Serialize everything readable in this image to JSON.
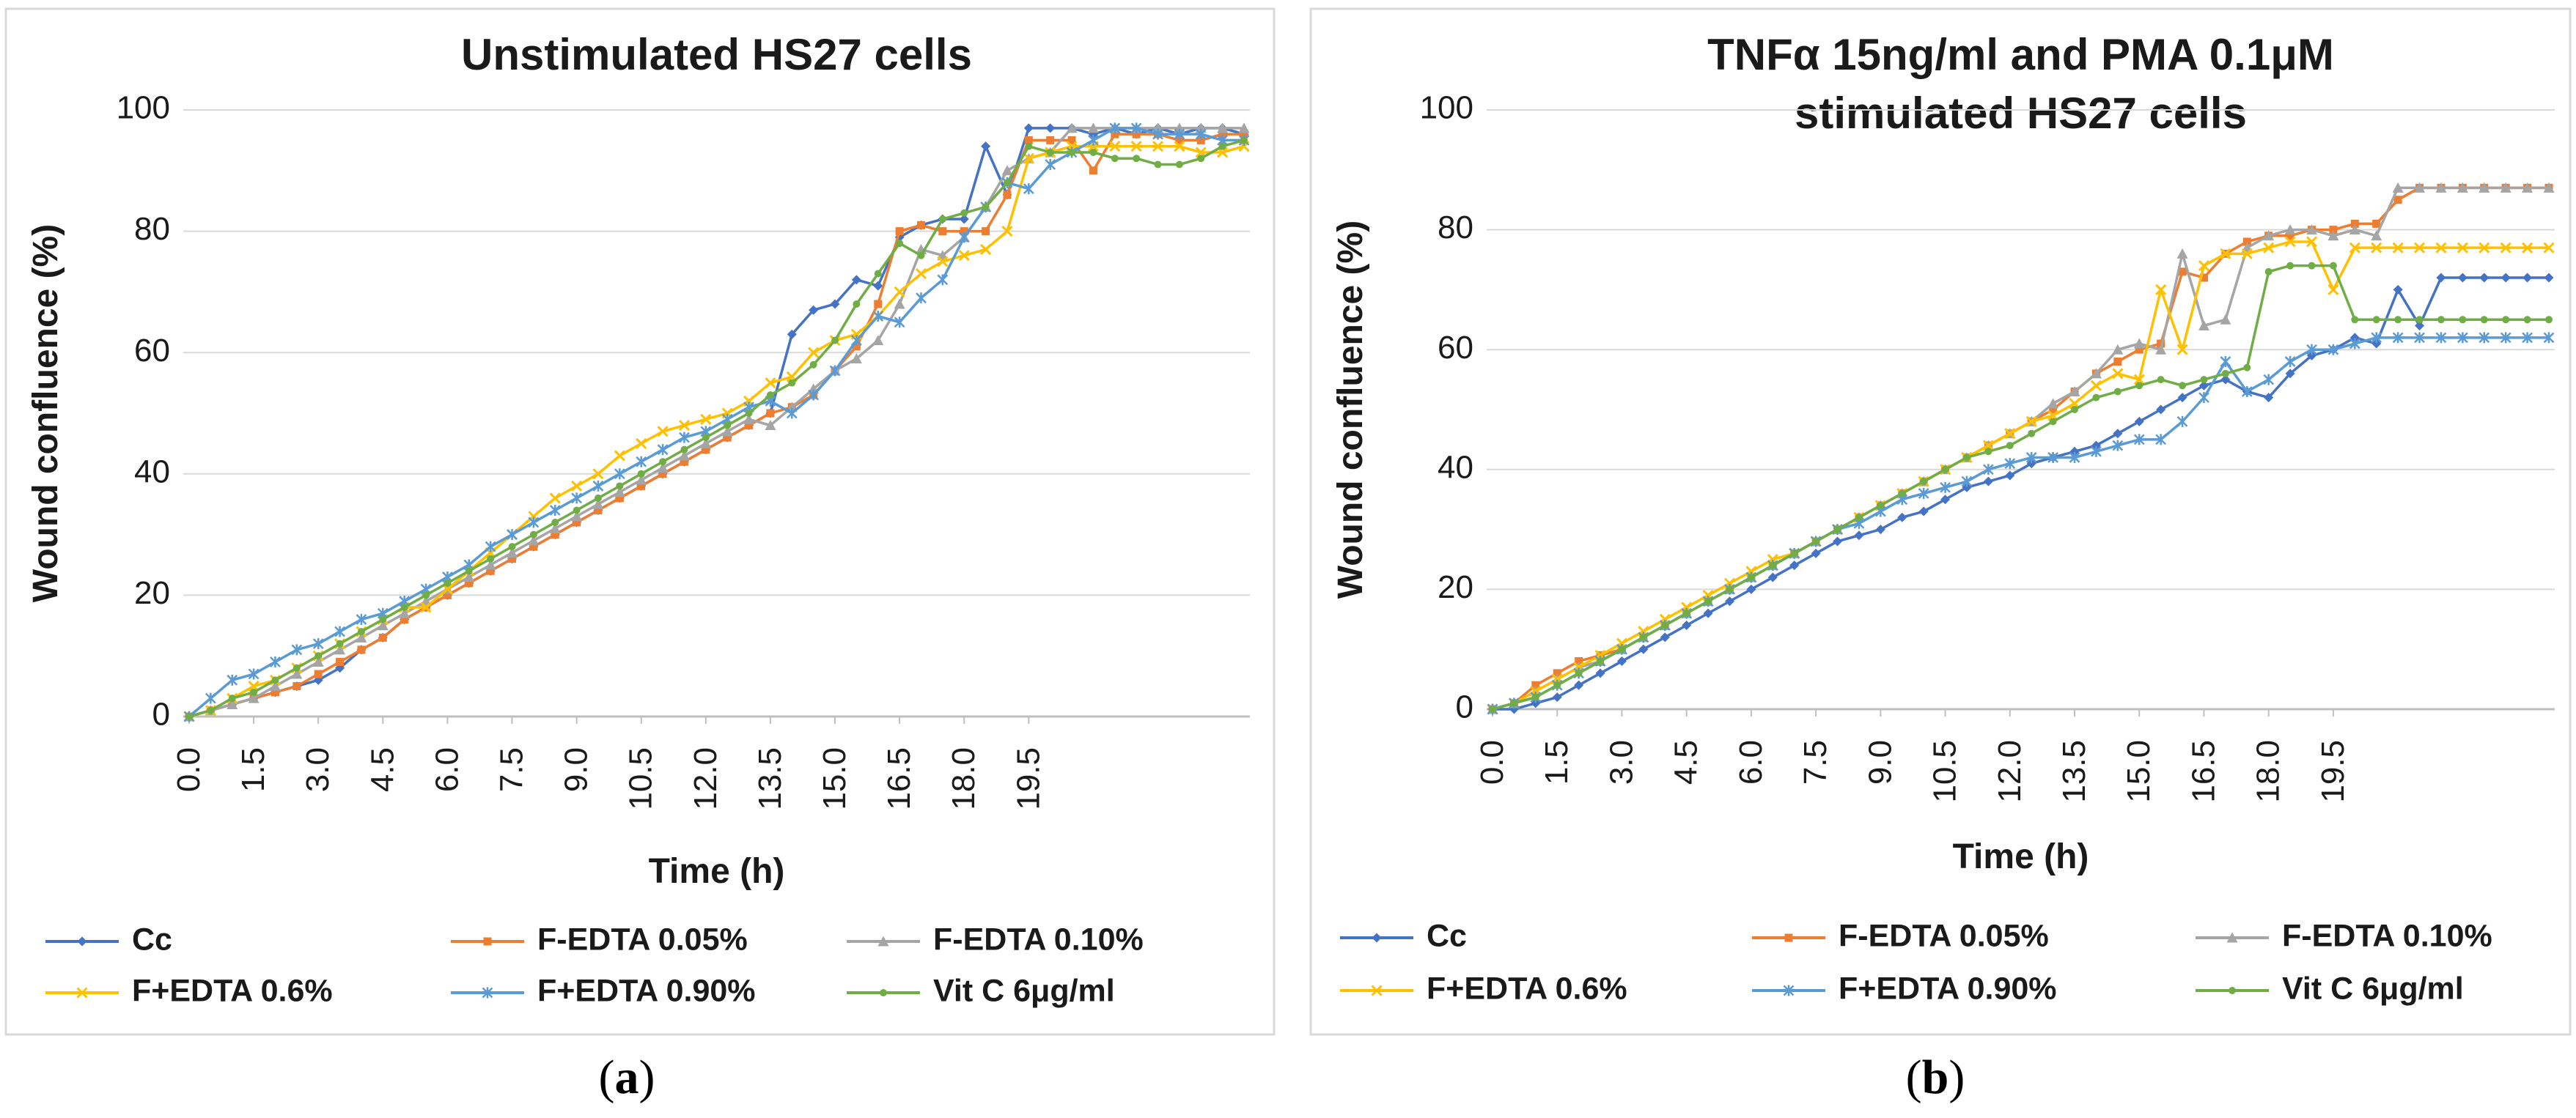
{
  "figure": {
    "panel_a_caption": "a",
    "panel_b_caption": "b"
  },
  "chart_data": [
    {
      "type": "line",
      "title": "Unstimulated  HS27 cells",
      "title_lines": [
        "Unstimulated  HS27 cells"
      ],
      "xlabel": "Time (h)",
      "ylabel": "Wound confluence (%)",
      "ylim": [
        0,
        100
      ],
      "yticks": [
        0,
        20,
        40,
        60,
        80,
        100
      ],
      "xticks": [
        "0.0",
        "1.5",
        "3.0",
        "4.5",
        "6.0",
        "7.5",
        "9.0",
        "10.5",
        "12.0",
        "13.5",
        "15.0",
        "16.5",
        "18.0",
        "19.5"
      ],
      "x_start": 0,
      "x_step": 0.5,
      "grid": true,
      "legend_position": "bottom",
      "series": [
        {
          "name": "Cc",
          "color": "#4472C4",
          "marker": "diamond",
          "values": [
            0,
            1,
            2,
            3,
            4,
            5,
            6,
            8,
            11,
            13,
            16,
            18,
            20,
            22,
            24,
            26,
            28,
            30,
            32,
            34,
            36,
            38,
            40,
            42,
            44,
            46,
            48,
            50,
            63,
            67,
            68,
            72,
            71,
            79,
            81,
            82,
            82,
            94,
            86,
            97,
            97,
            97,
            96,
            97,
            96,
            97,
            96,
            97,
            97,
            96
          ]
        },
        {
          "name": "F-EDTA 0.05%",
          "color": "#ED7D31",
          "marker": "square",
          "values": [
            0,
            1,
            2,
            3,
            4,
            5,
            7,
            9,
            11,
            13,
            16,
            18,
            20,
            22,
            24,
            26,
            28,
            30,
            32,
            34,
            36,
            38,
            40,
            42,
            44,
            46,
            48,
            50,
            51,
            53,
            57,
            61,
            68,
            80,
            81,
            80,
            80,
            80,
            86,
            95,
            95,
            95,
            90,
            96,
            96,
            96,
            95,
            95,
            96,
            96
          ]
        },
        {
          "name": "F-EDTA 0.10%",
          "color": "#A5A5A5",
          "marker": "triangle",
          "values": [
            0,
            1,
            2,
            3,
            5,
            7,
            9,
            11,
            13,
            15,
            17,
            19,
            21,
            23,
            25,
            27,
            29,
            31,
            33,
            35,
            37,
            39,
            41,
            43,
            45,
            47,
            49,
            48,
            51,
            54,
            57,
            59,
            62,
            68,
            77,
            76,
            79,
            84,
            90,
            92,
            93,
            97,
            97,
            97,
            97,
            97,
            97,
            97,
            97,
            97
          ]
        },
        {
          "name": "F+EDTA 0.6%",
          "color": "#FFC000",
          "marker": "x",
          "values": [
            0,
            1,
            3,
            5,
            6,
            8,
            10,
            12,
            14,
            16,
            18,
            18,
            21,
            24,
            27,
            30,
            33,
            36,
            38,
            40,
            43,
            45,
            47,
            48,
            49,
            50,
            52,
            55,
            56,
            60,
            62,
            63,
            66,
            70,
            73,
            75,
            76,
            77,
            80,
            92,
            93,
            94,
            94,
            94,
            94,
            94,
            94,
            93,
            93,
            94
          ]
        },
        {
          "name": "F+EDTA 0.90%",
          "color": "#5B9BD5",
          "marker": "asterisk",
          "values": [
            0,
            3,
            6,
            7,
            9,
            11,
            12,
            14,
            16,
            17,
            19,
            21,
            23,
            25,
            28,
            30,
            32,
            34,
            36,
            38,
            40,
            42,
            44,
            46,
            47,
            49,
            51,
            52,
            50,
            53,
            57,
            62,
            66,
            65,
            69,
            72,
            79,
            84,
            88,
            87,
            91,
            93,
            95,
            97,
            97,
            96,
            96,
            96,
            95,
            95
          ]
        },
        {
          "name": "Vit C 6μg/ml",
          "color": "#70AD47",
          "marker": "circle",
          "values": [
            0,
            1,
            3,
            4,
            6,
            8,
            10,
            12,
            14,
            16,
            18,
            20,
            22,
            24,
            26,
            28,
            30,
            32,
            34,
            36,
            38,
            40,
            42,
            44,
            46,
            48,
            50,
            53,
            55,
            58,
            62,
            68,
            73,
            78,
            76,
            82,
            83,
            84,
            88,
            94,
            93,
            93,
            93,
            92,
            92,
            91,
            91,
            92,
            94,
            95
          ]
        }
      ]
    },
    {
      "type": "line",
      "title": "TNFα 15ng/ml and PMA 0.1μM stimulated HS27 cells",
      "title_lines": [
        "TNFα 15ng/ml and PMA 0.1μM",
        "stimulated HS27 cells"
      ],
      "xlabel": "Time (h)",
      "ylabel": "Wound confluence (%)",
      "ylim": [
        0,
        100
      ],
      "yticks": [
        0,
        20,
        40,
        60,
        80,
        100
      ],
      "xticks": [
        "0.0",
        "1.5",
        "3.0",
        "4.5",
        "6.0",
        "7.5",
        "9.0",
        "10.5",
        "12.0",
        "13.5",
        "15.0",
        "16.5",
        "18.0",
        "19.5"
      ],
      "x_start": 0,
      "x_step": 0.5,
      "grid": true,
      "legend_position": "bottom",
      "series": [
        {
          "name": "Cc",
          "color": "#4472C4",
          "marker": "diamond",
          "values": [
            0,
            0,
            1,
            2,
            4,
            6,
            8,
            10,
            12,
            14,
            16,
            18,
            20,
            22,
            24,
            26,
            28,
            29,
            30,
            32,
            33,
            35,
            37,
            38,
            39,
            41,
            42,
            43,
            44,
            46,
            48,
            50,
            52,
            54,
            55,
            53,
            52,
            56,
            59,
            60,
            62,
            61,
            70,
            64,
            72,
            72,
            72,
            72,
            72,
            72
          ]
        },
        {
          "name": "F-EDTA 0.05%",
          "color": "#ED7D31",
          "marker": "square",
          "values": [
            0,
            1,
            4,
            6,
            8,
            9,
            10,
            12,
            14,
            16,
            18,
            20,
            22,
            24,
            26,
            28,
            30,
            32,
            34,
            36,
            38,
            40,
            42,
            44,
            46,
            48,
            50,
            53,
            56,
            58,
            60,
            61,
            73,
            72,
            76,
            78,
            79,
            79,
            80,
            80,
            81,
            81,
            85,
            87,
            87,
            87,
            87,
            87,
            87,
            87
          ]
        },
        {
          "name": "F-EDTA 0.10%",
          "color": "#A5A5A5",
          "marker": "triangle",
          "values": [
            0,
            1,
            3,
            5,
            7,
            8,
            10,
            12,
            14,
            16,
            18,
            20,
            22,
            24,
            26,
            28,
            30,
            32,
            34,
            36,
            38,
            40,
            42,
            44,
            46,
            48,
            51,
            53,
            56,
            60,
            61,
            60,
            76,
            64,
            65,
            77,
            79,
            80,
            80,
            79,
            80,
            79,
            87,
            87,
            87,
            87,
            87,
            87,
            87,
            87
          ]
        },
        {
          "name": "F+EDTA 0.6%",
          "color": "#FFC000",
          "marker": "x",
          "values": [
            0,
            1,
            3,
            5,
            7,
            9,
            11,
            13,
            15,
            17,
            19,
            21,
            23,
            25,
            26,
            28,
            30,
            32,
            34,
            36,
            38,
            40,
            42,
            44,
            46,
            48,
            49,
            51,
            54,
            56,
            55,
            70,
            60,
            74,
            76,
            76,
            77,
            78,
            78,
            70,
            77,
            77,
            77,
            77,
            77,
            77,
            77,
            77,
            77,
            77
          ]
        },
        {
          "name": "F+EDTA 0.90%",
          "color": "#5B9BD5",
          "marker": "asterisk",
          "values": [
            0,
            1,
            2,
            4,
            6,
            8,
            10,
            12,
            14,
            16,
            18,
            20,
            22,
            24,
            26,
            28,
            30,
            31,
            33,
            35,
            36,
            37,
            38,
            40,
            41,
            42,
            42,
            42,
            43,
            44,
            45,
            45,
            48,
            52,
            58,
            53,
            55,
            58,
            60,
            60,
            61,
            62,
            62,
            62,
            62,
            62,
            62,
            62,
            62,
            62
          ]
        },
        {
          "name": "Vit C 6μg/ml",
          "color": "#70AD47",
          "marker": "circle",
          "values": [
            0,
            1,
            2,
            4,
            6,
            8,
            10,
            12,
            14,
            16,
            18,
            20,
            22,
            24,
            26,
            28,
            30,
            32,
            34,
            36,
            38,
            40,
            42,
            43,
            44,
            46,
            48,
            50,
            52,
            53,
            54,
            55,
            54,
            55,
            56,
            57,
            73,
            74,
            74,
            74,
            65,
            65,
            65,
            65,
            65,
            65,
            65,
            65,
            65,
            65
          ]
        }
      ]
    }
  ]
}
